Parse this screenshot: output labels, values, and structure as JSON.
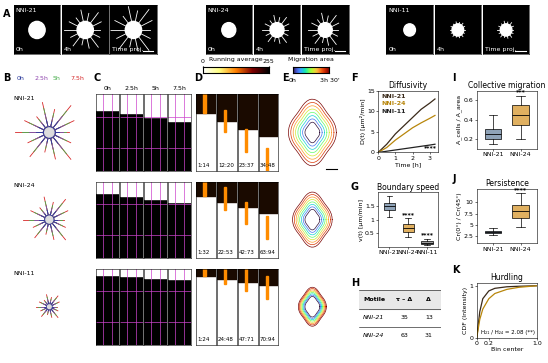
{
  "panel_letters": [
    "A",
    "B",
    "C",
    "D",
    "E",
    "F",
    "G",
    "H",
    "I",
    "J",
    "K"
  ],
  "A": {
    "groups": [
      "NNI-21",
      "NNI-24",
      "NNI-11"
    ],
    "frames": [
      "0h",
      "4h",
      "Time proj."
    ]
  },
  "B": {
    "rows": [
      "NNI-21",
      "NNI-24",
      "NNI-11"
    ],
    "times": [
      "0h",
      "2.5h",
      "5h",
      "7.5h"
    ],
    "colors": [
      "#2b3a9b",
      "#8e44ad",
      "#4caf50",
      "#d62728"
    ]
  },
  "C": {
    "frames": [
      "0h",
      "2.5h",
      "5h",
      "7.5h"
    ]
  },
  "D": {
    "title": "Running average",
    "cbar_ticks": [
      0,
      255
    ],
    "stamps": [
      [
        "1:14",
        "12:20",
        "23:37",
        "34:48"
      ],
      [
        "1:32",
        "22:53",
        "42:73",
        "63:94"
      ],
      [
        "1:24",
        "24:48",
        "47:71",
        "70:94"
      ]
    ]
  },
  "E": {
    "title": "Migration area",
    "cbar_labels": [
      "0h",
      "3h 30'"
    ]
  },
  "H": {
    "header": [
      "Motile",
      "τ – Δ",
      "Δ"
    ],
    "rows": [
      [
        "NNI-21",
        35,
        13
      ],
      [
        "NNI-24",
        63,
        31
      ]
    ]
  },
  "chart_data": [
    {
      "type": "line",
      "title": "Diffusivity",
      "x_label": "Time [h]",
      "y_label": "D(t) [µm²/min]",
      "x": [
        0,
        0.5,
        1,
        1.5,
        2,
        2.5,
        3,
        3.3
      ],
      "series": [
        {
          "name": "NNI-21",
          "color": "#3a2a1a",
          "values": [
            0,
            2,
            4.5,
            6.5,
            8.5,
            10.5,
            12,
            13
          ]
        },
        {
          "name": "NNI-24",
          "color": "#b8860b",
          "values": [
            0,
            1.2,
            3,
            4.5,
            6,
            7.2,
            8.3,
            9
          ]
        },
        {
          "name": "NNI-11",
          "color": "#222222",
          "values": [
            0,
            0.3,
            0.6,
            0.9,
            1.2,
            1.5,
            1.8,
            2
          ]
        }
      ],
      "xlim": [
        0,
        3.5
      ],
      "ylim": [
        0,
        15
      ],
      "xticks": [
        0,
        1,
        2,
        3
      ],
      "yticks": [
        0,
        5,
        10,
        15
      ],
      "annotation": "****"
    },
    {
      "type": "box",
      "title": "Boundary speed",
      "y_label": "v(t) [µm/min]",
      "categories": [
        "NNI-21",
        "NNI-24",
        "NNI-11"
      ],
      "colors": [
        "#8fa3b8",
        "#e0b060",
        "#a0a0a0"
      ],
      "boxes": {
        "min": [
          1.1,
          0.35,
          0.05
        ],
        "q1": [
          1.35,
          0.55,
          0.1
        ],
        "median": [
          1.5,
          0.7,
          0.15
        ],
        "q3": [
          1.6,
          0.85,
          0.2
        ],
        "max": [
          1.85,
          1.05,
          0.3
        ]
      },
      "ylim": [
        0,
        2
      ],
      "yticks": [
        0.5,
        1,
        1.5
      ],
      "significance": [
        null,
        "****",
        "****"
      ]
    },
    {
      "type": "box",
      "title": "Collective migration",
      "y_label": "A_cells / A_area",
      "categories": [
        "NNI-21",
        "NNI-24"
      ],
      "colors": [
        "#8fa3b8",
        "#e0b060"
      ],
      "boxes": {
        "min": [
          0.15,
          0.2
        ],
        "q1": [
          0.2,
          0.35
        ],
        "median": [
          0.25,
          0.45
        ],
        "q3": [
          0.3,
          0.55
        ],
        "max": [
          0.45,
          0.65
        ]
      },
      "ylim": [
        0.1,
        0.7
      ],
      "yticks": [
        0.2,
        0.4,
        0.6
      ],
      "significance": [
        null,
        "***"
      ]
    },
    {
      "type": "box",
      "title": "Persistence",
      "y_label": "Cr(0°) / Cr(45°)",
      "categories": [
        "NNI-21",
        "NNI-24"
      ],
      "colors": [
        "#8fa3b8",
        "#e0b060"
      ],
      "boxes": {
        "min": [
          2.8,
          4.5
        ],
        "q1": [
          3.2,
          6.5
        ],
        "median": [
          3.5,
          8
        ],
        "q3": [
          3.8,
          9.5
        ],
        "max": [
          4.3,
          12
        ]
      },
      "ylim": [
        1,
        13
      ],
      "yticks": [
        2.5,
        5,
        7.5,
        10
      ],
      "significance": [
        null,
        "****"
      ]
    },
    {
      "type": "line",
      "title": "Hurdling",
      "x_label": "Bin center",
      "y_label": "CDF (Intensity)",
      "x": [
        0,
        0.05,
        0.1,
        0.2,
        0.3,
        0.5,
        0.7,
        1.0
      ],
      "series": [
        {
          "name": "NNI-21",
          "color": "#3a2a1a",
          "values": [
            0,
            0.5,
            0.75,
            0.9,
            0.95,
            0.98,
            0.99,
            1
          ]
        },
        {
          "name": "NNI-24",
          "color": "#b8860b",
          "values": [
            0,
            0.35,
            0.55,
            0.75,
            0.85,
            0.93,
            0.97,
            1
          ]
        }
      ],
      "xlim": [
        0,
        1
      ],
      "ylim": [
        0,
        1.05
      ],
      "xticks": [
        0,
        0.2,
        {
          "value": 1,
          "label": "1.0"
        }
      ],
      "yticks": [
        0,
        1
      ],
      "annotation": "H₂₁ / H₂₄ = 2.08 (**)"
    }
  ]
}
